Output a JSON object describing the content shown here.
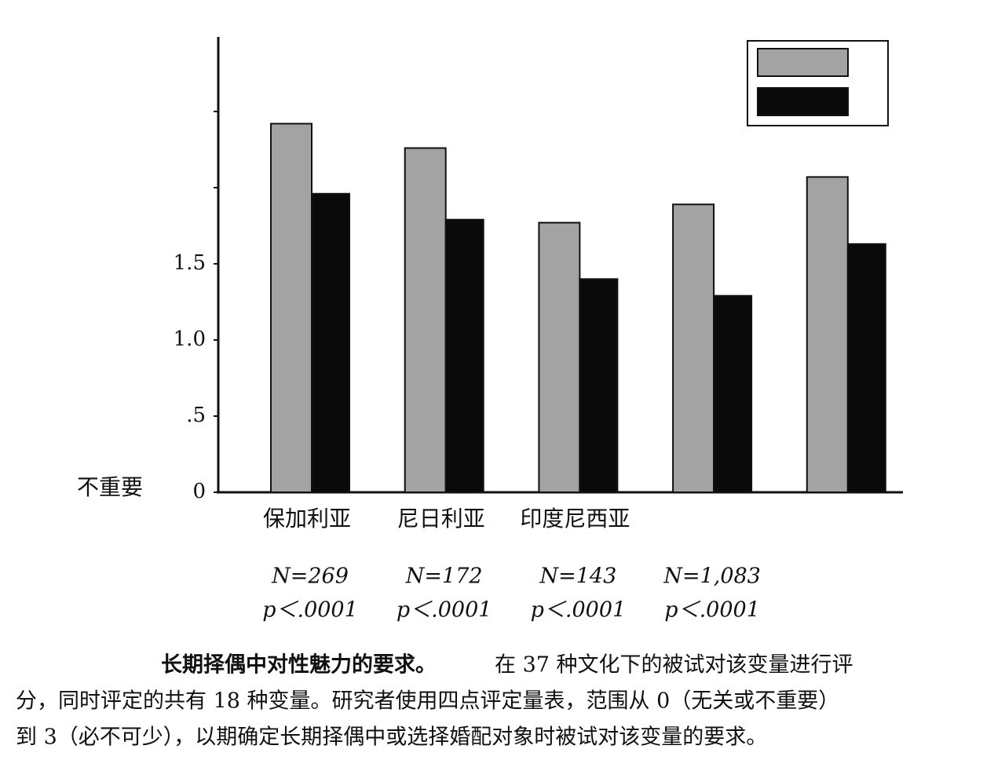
{
  "chart_data": {
    "type": "bar",
    "y_label": "不重要",
    "categories": [
      "保加利亚",
      "尼日利亚",
      "印度尼西亚",
      null,
      null
    ],
    "series": [
      {
        "color": "#a3a3a3",
        "values": [
          2.42,
          2.26,
          1.77,
          1.89,
          2.07
        ]
      },
      {
        "color": "#0a0a0a",
        "values": [
          1.96,
          1.79,
          1.4,
          1.29,
          1.63
        ]
      }
    ],
    "ylim": [
      0,
      3
    ],
    "yticks": [
      0,
      {
        "value": 0.5,
        "label": ".5"
      },
      {
        "value": 1,
        "label": "1.0"
      },
      {
        "value": 1.5,
        "label": "1.5"
      }
    ],
    "yticks_unlabeled": [
      2,
      2.5
    ],
    "sample_sizes": [
      "N=269",
      "N=172",
      "N=143",
      "N=1,083",
      null
    ],
    "p_values": [
      "p＜.0001",
      "p＜.0001",
      "p＜.0001",
      "p＜.0001",
      null
    ]
  },
  "caption": {
    "title": "长期择偶中对性魅力的要求。",
    "lines": [
      "在 37 种文化下的被试对该变量进行评",
      "分，同时评定的共有 18 种变量。研究者使用四点评定量表，范围从 0（无关或不重要）",
      "到 3（必不可少），以期确定长期择偶中或选择婚配对象时被试对该变量的要求。"
    ]
  }
}
